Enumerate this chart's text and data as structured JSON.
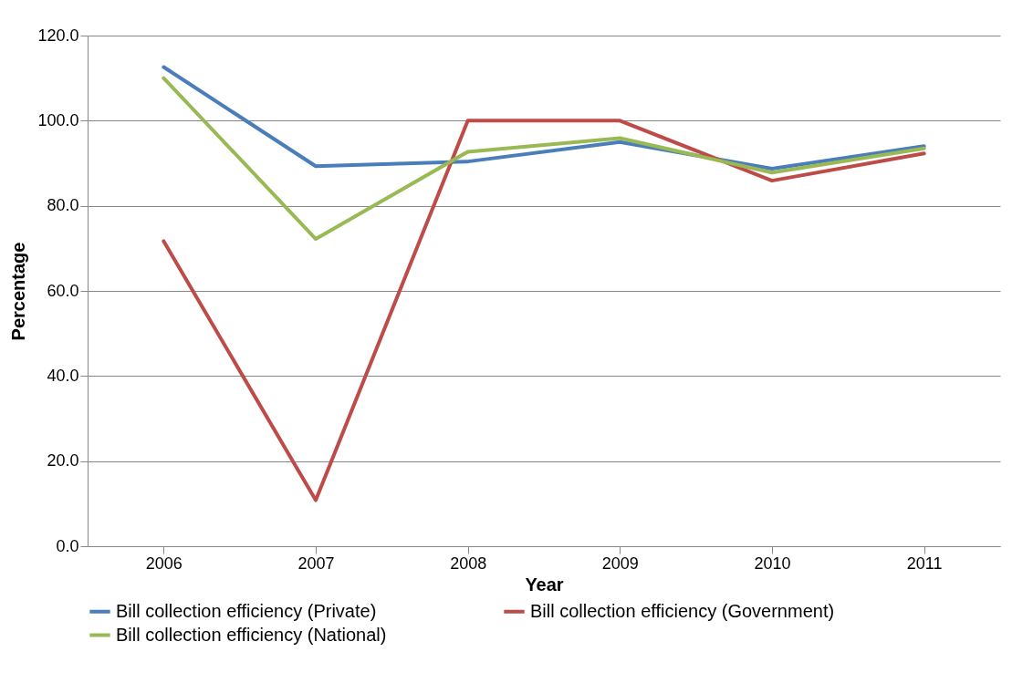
{
  "chart_data": {
    "type": "line",
    "xlabel": "Year",
    "ylabel": "Percentage",
    "categories": [
      "2006",
      "2007",
      "2008",
      "2009",
      "2010",
      "2011"
    ],
    "series": [
      {
        "name": "Bill collection efficiency (Private)",
        "color": "#4a7ebb",
        "values": [
          112.6,
          89.3,
          90.4,
          95.0,
          88.7,
          94.0
        ]
      },
      {
        "name": "Bill collection efficiency (Government)",
        "color": "#be4b48",
        "values": [
          71.7,
          10.8,
          100.0,
          100.0,
          85.9,
          92.3
        ]
      },
      {
        "name": "Bill collection efficiency (National)",
        "color": "#98b954",
        "values": [
          110.0,
          72.2,
          92.7,
          95.9,
          87.8,
          93.5
        ]
      }
    ],
    "ylim": [
      0,
      120
    ],
    "yticks": [
      {
        "value": 0,
        "label": "0.0"
      },
      {
        "value": 20,
        "label": "20.0"
      },
      {
        "value": 40,
        "label": "40.0"
      },
      {
        "value": 60,
        "label": "60.0"
      },
      {
        "value": 80,
        "label": "80.0"
      },
      {
        "value": 100,
        "label": "100.0"
      },
      {
        "value": 120,
        "label": "120.0"
      }
    ],
    "grid": "y",
    "legend": "bottom",
    "marker": "none",
    "line_style": "solid"
  }
}
